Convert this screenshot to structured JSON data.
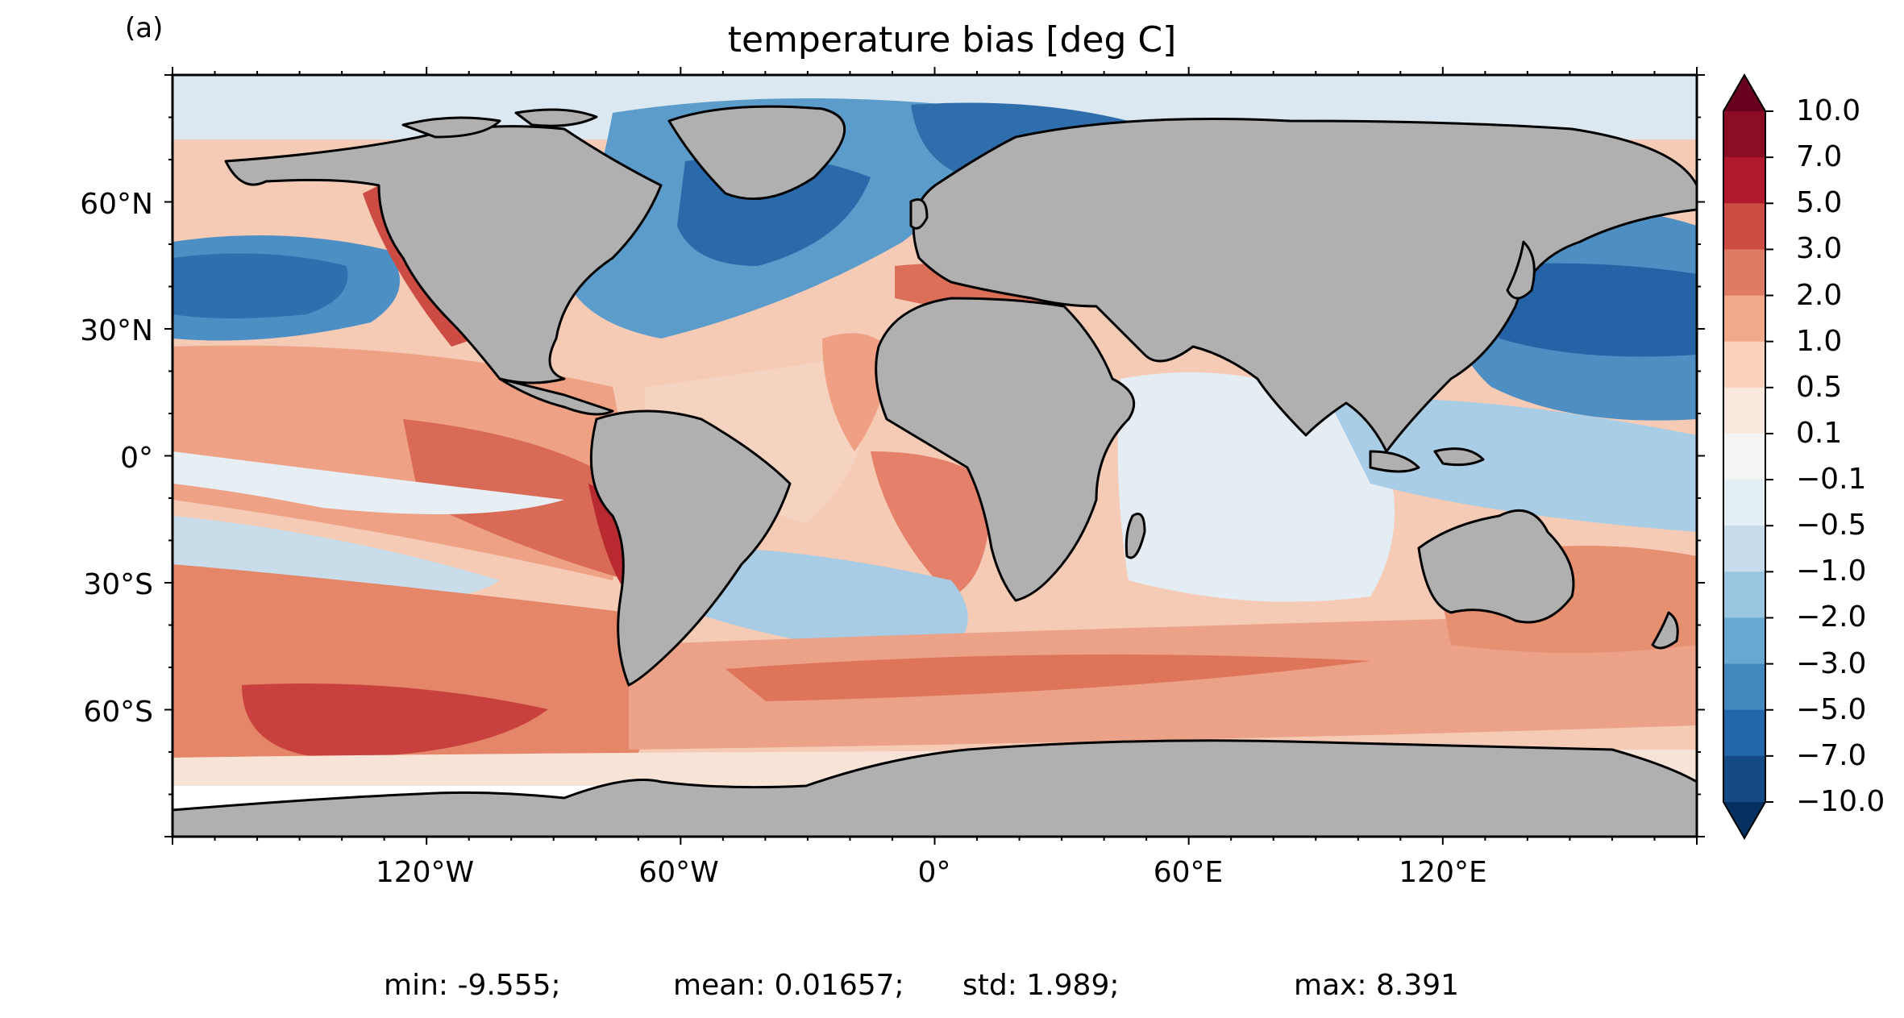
{
  "panel_label": "(a)",
  "title": "temperature bias [deg C]",
  "map": {
    "projection": "PlateCarree (equirectangular)",
    "extent_lon": [
      -180,
      180
    ],
    "extent_lat": [
      -90,
      90
    ],
    "land_color": "#b0b0b0",
    "coastline_color": "#000000",
    "lat_ticks": [
      {
        "lat": 60,
        "label": "60°N"
      },
      {
        "lat": 30,
        "label": "30°N"
      },
      {
        "lat": 0,
        "label": "0°"
      },
      {
        "lat": -30,
        "label": "30°S"
      },
      {
        "lat": -60,
        "label": "60°S"
      }
    ],
    "lon_ticks": [
      {
        "lon": -120,
        "label": "120°W"
      },
      {
        "lon": -60,
        "label": "60°W"
      },
      {
        "lon": 0,
        "label": "0°"
      },
      {
        "lon": 60,
        "label": "60°E"
      },
      {
        "lon": 120,
        "label": "120°E"
      }
    ]
  },
  "colorbar": {
    "extend": "both",
    "levels": [
      "10.0",
      "7.0",
      "5.0",
      "3.0",
      "2.0",
      "1.0",
      "0.5",
      "0.1",
      "−0.1",
      "−0.5",
      "−1.0",
      "−2.0",
      "−3.0",
      "−5.0",
      "−7.0",
      "−10.0"
    ],
    "colors": [
      "#8b0c25",
      "#b2182b",
      "#cc4c43",
      "#e07b63",
      "#f2a98a",
      "#fbd1bb",
      "#fbe9df",
      "#f5f5f5",
      "#e3eef5",
      "#c6dcec",
      "#98c5e0",
      "#69a8d0",
      "#4188bf",
      "#2266ac",
      "#144a86"
    ],
    "over_color": "#67001f",
    "under_color": "#053061"
  },
  "stats": {
    "min": "min: -9.555;",
    "mean": "mean: 0.01657;",
    "std": "std: 1.989;",
    "max": "max: 8.391"
  }
}
